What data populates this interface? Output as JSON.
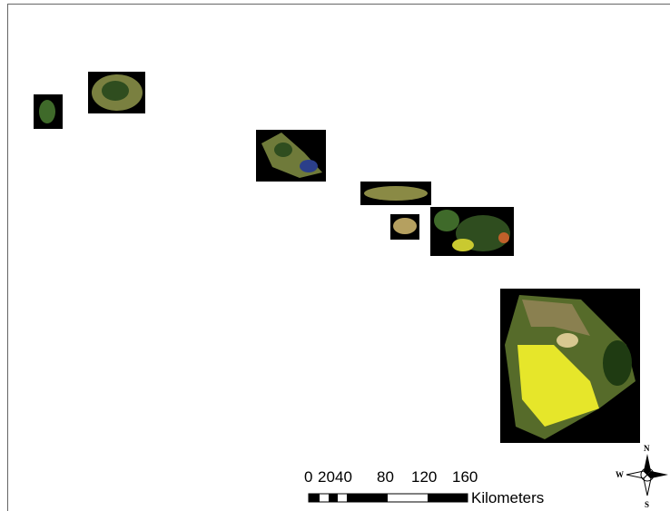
{
  "scale_bar": {
    "labels": [
      "0",
      "20",
      "40",
      "80",
      "120",
      "160"
    ],
    "unit": "Kilometers"
  },
  "compass": {
    "north": "N",
    "west": "W",
    "south": "S"
  }
}
